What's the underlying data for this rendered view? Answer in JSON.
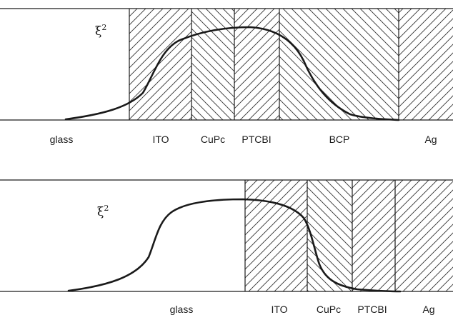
{
  "symbol": "ξ",
  "symbol_exponent": "2",
  "top_panel": {
    "layers": [
      {
        "name": "glass",
        "hatch": "none"
      },
      {
        "name": "ITO",
        "hatch": "forward"
      },
      {
        "name": "CuPc",
        "hatch": "back"
      },
      {
        "name": "PTCBI",
        "hatch": "forward"
      },
      {
        "name": "BCP",
        "hatch": "back"
      },
      {
        "name": "Ag",
        "hatch": "forward"
      }
    ]
  },
  "bottom_panel": {
    "layers": [
      {
        "name": "glass",
        "hatch": "none"
      },
      {
        "name": "ITO",
        "hatch": "forward"
      },
      {
        "name": "CuPc",
        "hatch": "back"
      },
      {
        "name": "PTCBI",
        "hatch": "forward"
      },
      {
        "name": "Ag",
        "hatch": "forward"
      }
    ]
  },
  "colors": {
    "ink": "#1a1a1a",
    "background": "#ffffff"
  }
}
